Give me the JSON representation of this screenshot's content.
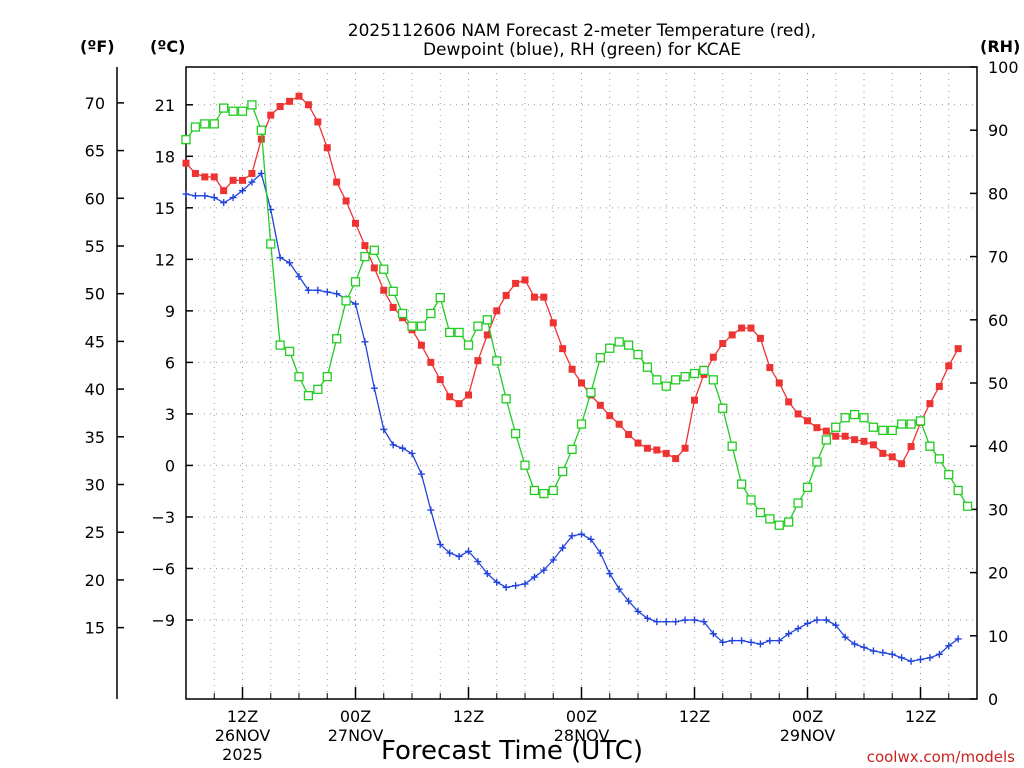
{
  "chart_data": {
    "type": "line",
    "title_line1": "2025112606 NAM Forecast 2-meter Temperature (red),",
    "title_line2": "Dewpoint (blue), RH (green) for KCAE",
    "xlabel": "Forecast Time (UTC)",
    "unit_f": "(ºF)",
    "unit_c": "(ºC)",
    "unit_rh": "(RH)",
    "watermark": "coolwx.com/models",
    "x_unit": "forecast hour",
    "xlim": [
      0,
      84
    ],
    "ylim_c": [
      -13.6,
      23.2
    ],
    "ylim_rh": [
      0,
      100
    ],
    "f_ticks": [
      "70",
      "65",
      "60",
      "55",
      "50",
      "45",
      "40",
      "35",
      "30",
      "25",
      "20",
      "15"
    ],
    "c_ticks": [
      "21",
      "18",
      "15",
      "12",
      "9",
      "6",
      "3",
      "0",
      "−3",
      "−6",
      "−9"
    ],
    "rh_ticks": [
      "100",
      "90",
      "80",
      "70",
      "60",
      "50",
      "40",
      "30",
      "20",
      "10",
      "0"
    ],
    "x_ticks": [
      {
        "x": 6,
        "lines": [
          "12Z",
          "26NOV",
          "2025"
        ]
      },
      {
        "x": 18,
        "lines": [
          "00Z",
          "27NOV"
        ]
      },
      {
        "x": 30,
        "lines": [
          "12Z"
        ]
      },
      {
        "x": 42,
        "lines": [
          "00Z",
          "28NOV"
        ]
      },
      {
        "x": 54,
        "lines": [
          "12Z"
        ]
      },
      {
        "x": 66,
        "lines": [
          "00Z",
          "29NOV"
        ]
      },
      {
        "x": 78,
        "lines": [
          "12Z"
        ]
      }
    ],
    "series": [
      {
        "name": "Temperature",
        "color": "#ee3333",
        "marker": "filled-square",
        "axis": "celsius",
        "values": [
          17.6,
          17.0,
          16.8,
          16.8,
          16.0,
          16.6,
          16.6,
          17.0,
          19.0,
          20.4,
          20.9,
          21.2,
          21.5,
          21.0,
          20.0,
          18.5,
          16.5,
          15.4,
          14.1,
          12.8,
          11.5,
          10.2,
          9.2,
          8.6,
          7.9,
          7.0,
          6.0,
          5.0,
          4.0,
          3.6,
          4.1,
          6.1,
          7.6,
          9.0,
          9.9,
          10.6,
          10.8,
          9.8,
          9.8,
          8.3,
          6.8,
          5.6,
          4.8,
          4.1,
          3.5,
          2.9,
          2.4,
          1.8,
          1.3,
          1.0,
          0.9,
          0.7,
          0.4,
          1.0,
          3.8,
          5.3,
          6.3,
          7.1,
          7.6,
          8.0,
          8.0,
          7.4,
          5.7,
          4.8,
          3.7,
          3.0,
          2.6,
          2.2,
          2.0,
          1.7,
          1.7,
          1.5,
          1.4,
          1.2,
          0.7,
          0.5,
          0.1,
          1.1,
          2.5,
          3.6,
          4.6,
          5.8,
          6.8
        ]
      },
      {
        "name": "Dewpoint",
        "color": "#2244dd",
        "marker": "plus",
        "axis": "celsius",
        "values": [
          15.8,
          15.7,
          15.7,
          15.6,
          15.3,
          15.6,
          16.0,
          16.5,
          17.0,
          14.9,
          12.1,
          11.8,
          11.0,
          10.2,
          10.2,
          10.1,
          10.0,
          9.7,
          9.4,
          7.2,
          4.5,
          2.1,
          1.2,
          1.0,
          0.7,
          -0.5,
          -2.6,
          -4.6,
          -5.1,
          -5.3,
          -5.0,
          -5.6,
          -6.3,
          -6.8,
          -7.1,
          -7.0,
          -6.9,
          -6.5,
          -6.1,
          -5.5,
          -4.8,
          -4.1,
          -4.0,
          -4.3,
          -5.1,
          -6.3,
          -7.2,
          -7.9,
          -8.5,
          -8.9,
          -9.1,
          -9.1,
          -9.1,
          -9.0,
          -9.0,
          -9.1,
          -9.8,
          -10.3,
          -10.2,
          -10.2,
          -10.3,
          -10.4,
          -10.2,
          -10.2,
          -9.8,
          -9.5,
          -9.2,
          -9.0,
          -9.0,
          -9.3,
          -10.0,
          -10.4,
          -10.6,
          -10.8,
          -10.9,
          -11.0,
          -11.2,
          -11.4,
          -11.3,
          -11.2,
          -11.0,
          -10.5,
          -10.1
        ]
      },
      {
        "name": "RH",
        "color": "#22cc22",
        "marker": "open-square",
        "axis": "rh",
        "values": [
          88.5,
          90.5,
          91.0,
          91.0,
          93.5,
          93.0,
          93.0,
          94.0,
          90.0,
          72.0,
          56.0,
          55.0,
          51.0,
          48.0,
          49.0,
          51.0,
          57.0,
          63.0,
          66.0,
          70.0,
          71.0,
          68.0,
          64.5,
          61.0,
          59.0,
          59.0,
          61.0,
          63.5,
          58.0,
          58.0,
          56.0,
          59.0,
          60.0,
          53.5,
          47.5,
          42.0,
          37.0,
          33.0,
          32.5,
          33.0,
          36.0,
          39.5,
          43.5,
          48.5,
          54.0,
          55.5,
          56.5,
          56.0,
          54.5,
          52.5,
          50.5,
          49.5,
          50.5,
          51.0,
          51.5,
          52.0,
          50.5,
          46.0,
          40.0,
          34.0,
          31.5,
          29.5,
          28.5,
          27.5,
          28.0,
          31.0,
          33.5,
          37.5,
          41.0,
          43.0,
          44.5,
          45.0,
          44.5,
          43.0,
          42.5,
          42.5,
          43.5,
          43.5,
          44.0,
          40.0,
          38.0,
          35.5,
          33.0,
          30.5
        ]
      }
    ]
  }
}
